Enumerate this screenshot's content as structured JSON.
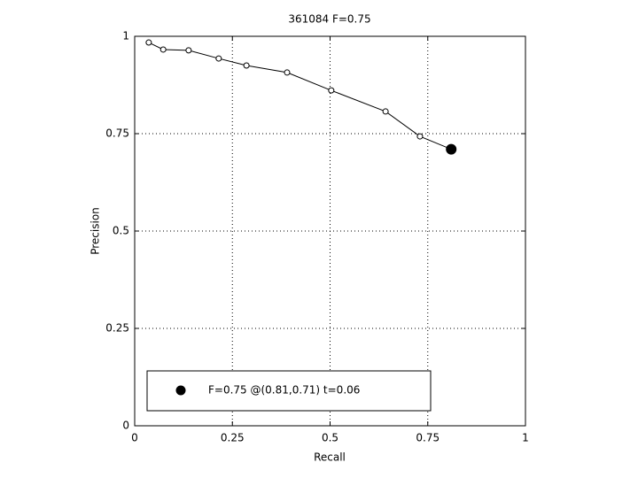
{
  "chart_data": {
    "type": "line",
    "title": "361084 F=0.75",
    "xlabel": "Recall",
    "ylabel": "Precision",
    "xlim": [
      0,
      1
    ],
    "ylim": [
      0,
      1
    ],
    "xticks": [
      0,
      0.25,
      0.5,
      0.75,
      1
    ],
    "yticks": [
      0,
      0.25,
      0.5,
      0.75,
      1
    ],
    "grid": true,
    "legend": "lower left",
    "series": [
      {
        "color": "#000000",
        "marker": "open-circle",
        "x": [
          0.036,
          0.073,
          0.138,
          0.215,
          0.286,
          0.39,
          0.503,
          0.642,
          0.73,
          0.81
        ],
        "values": [
          0.984,
          0.966,
          0.964,
          0.943,
          0.925,
          0.907,
          0.861,
          0.807,
          0.743,
          0.71
        ]
      },
      {
        "name": "F=0.75 @(0.81,0.71) t=0.06",
        "color": "#000000",
        "marker": "filled-dot",
        "x": [
          0.81
        ],
        "values": [
          0.71
        ]
      }
    ]
  }
}
